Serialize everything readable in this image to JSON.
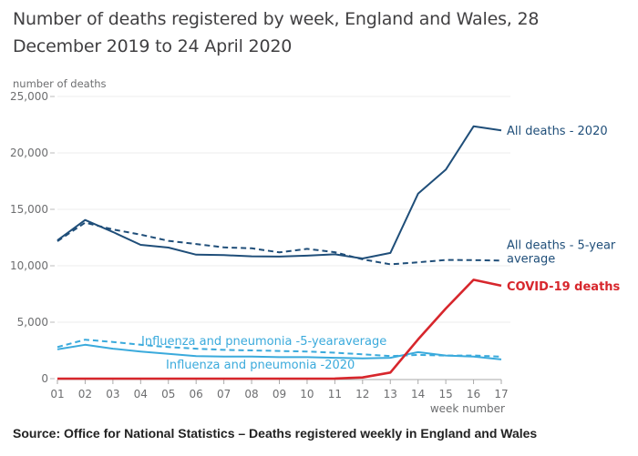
{
  "chart_data": {
    "type": "line",
    "title": "Number of deaths registered by week, England and Wales, 28 December 2019 to 24 April 2020",
    "title_line1": "Number of deaths registered by week, England and Wales, 28",
    "title_line2": "December 2019 to 24 April 2020",
    "xlabel": "week number",
    "ylabel": "number of deaths",
    "x": [
      "01",
      "02",
      "03",
      "04",
      "05",
      "06",
      "07",
      "08",
      "09",
      "10",
      "11",
      "12",
      "13",
      "14",
      "15",
      "16",
      "17"
    ],
    "ylim": [
      0,
      25000
    ],
    "yticks": [
      0,
      5000,
      10000,
      15000,
      20000,
      25000
    ],
    "ytick_labels": [
      "0",
      "5,000",
      "10,000",
      "15,000",
      "20,000",
      "25,000"
    ],
    "grid": true,
    "legend": "inline-labels",
    "series": [
      {
        "name": "All deaths - 2020",
        "label": "All deaths - 2020",
        "color": "#1f4e79",
        "style": "solid",
        "values": [
          12254,
          14058,
          12990,
          11856,
          11612,
          10986,
          10944,
          10841,
          10816,
          10895,
          11019,
          10645,
          11141,
          16387,
          18516,
          22351,
          21997
        ]
      },
      {
        "name": "All deaths - 5-year average",
        "label_line1": "All deaths - 5-year",
        "label_line2": "average",
        "color": "#1f4e79",
        "style": "dashed",
        "values": [
          12175,
          13822,
          13216,
          12760,
          12206,
          11925,
          11627,
          11548,
          11183,
          11498,
          11205,
          10573,
          10130,
          10305,
          10520,
          10497,
          10458
        ]
      },
      {
        "name": "COVID-19 deaths",
        "label": "COVID-19 deaths",
        "color": "#d7262c",
        "style": "solid",
        "values": [
          0,
          0,
          0,
          0,
          0,
          0,
          0,
          0,
          0,
          0,
          5,
          103,
          539,
          3475,
          6213,
          8758,
          8237
        ]
      },
      {
        "name": "Influenza and pneumonia -2020",
        "label": "Influenza and pneumonia -2020",
        "color": "#3aaadc",
        "style": "solid",
        "values": [
          2600,
          3000,
          2650,
          2400,
          2200,
          2000,
          1950,
          1950,
          1900,
          1900,
          1850,
          1800,
          1850,
          2350,
          2050,
          1950,
          1700
        ]
      },
      {
        "name": "Influenza and pneumonia -5-year average",
        "label": "Influenza and pneumonia -5-yearaverage",
        "color": "#3aaadc",
        "style": "dashed",
        "values": [
          2800,
          3450,
          3250,
          3000,
          2800,
          2650,
          2550,
          2500,
          2450,
          2400,
          2300,
          2150,
          2000,
          2100,
          2050,
          2050,
          1950
        ]
      }
    ],
    "source": "Source: Office for National Statistics – Deaths registered weekly in England and Wales"
  }
}
